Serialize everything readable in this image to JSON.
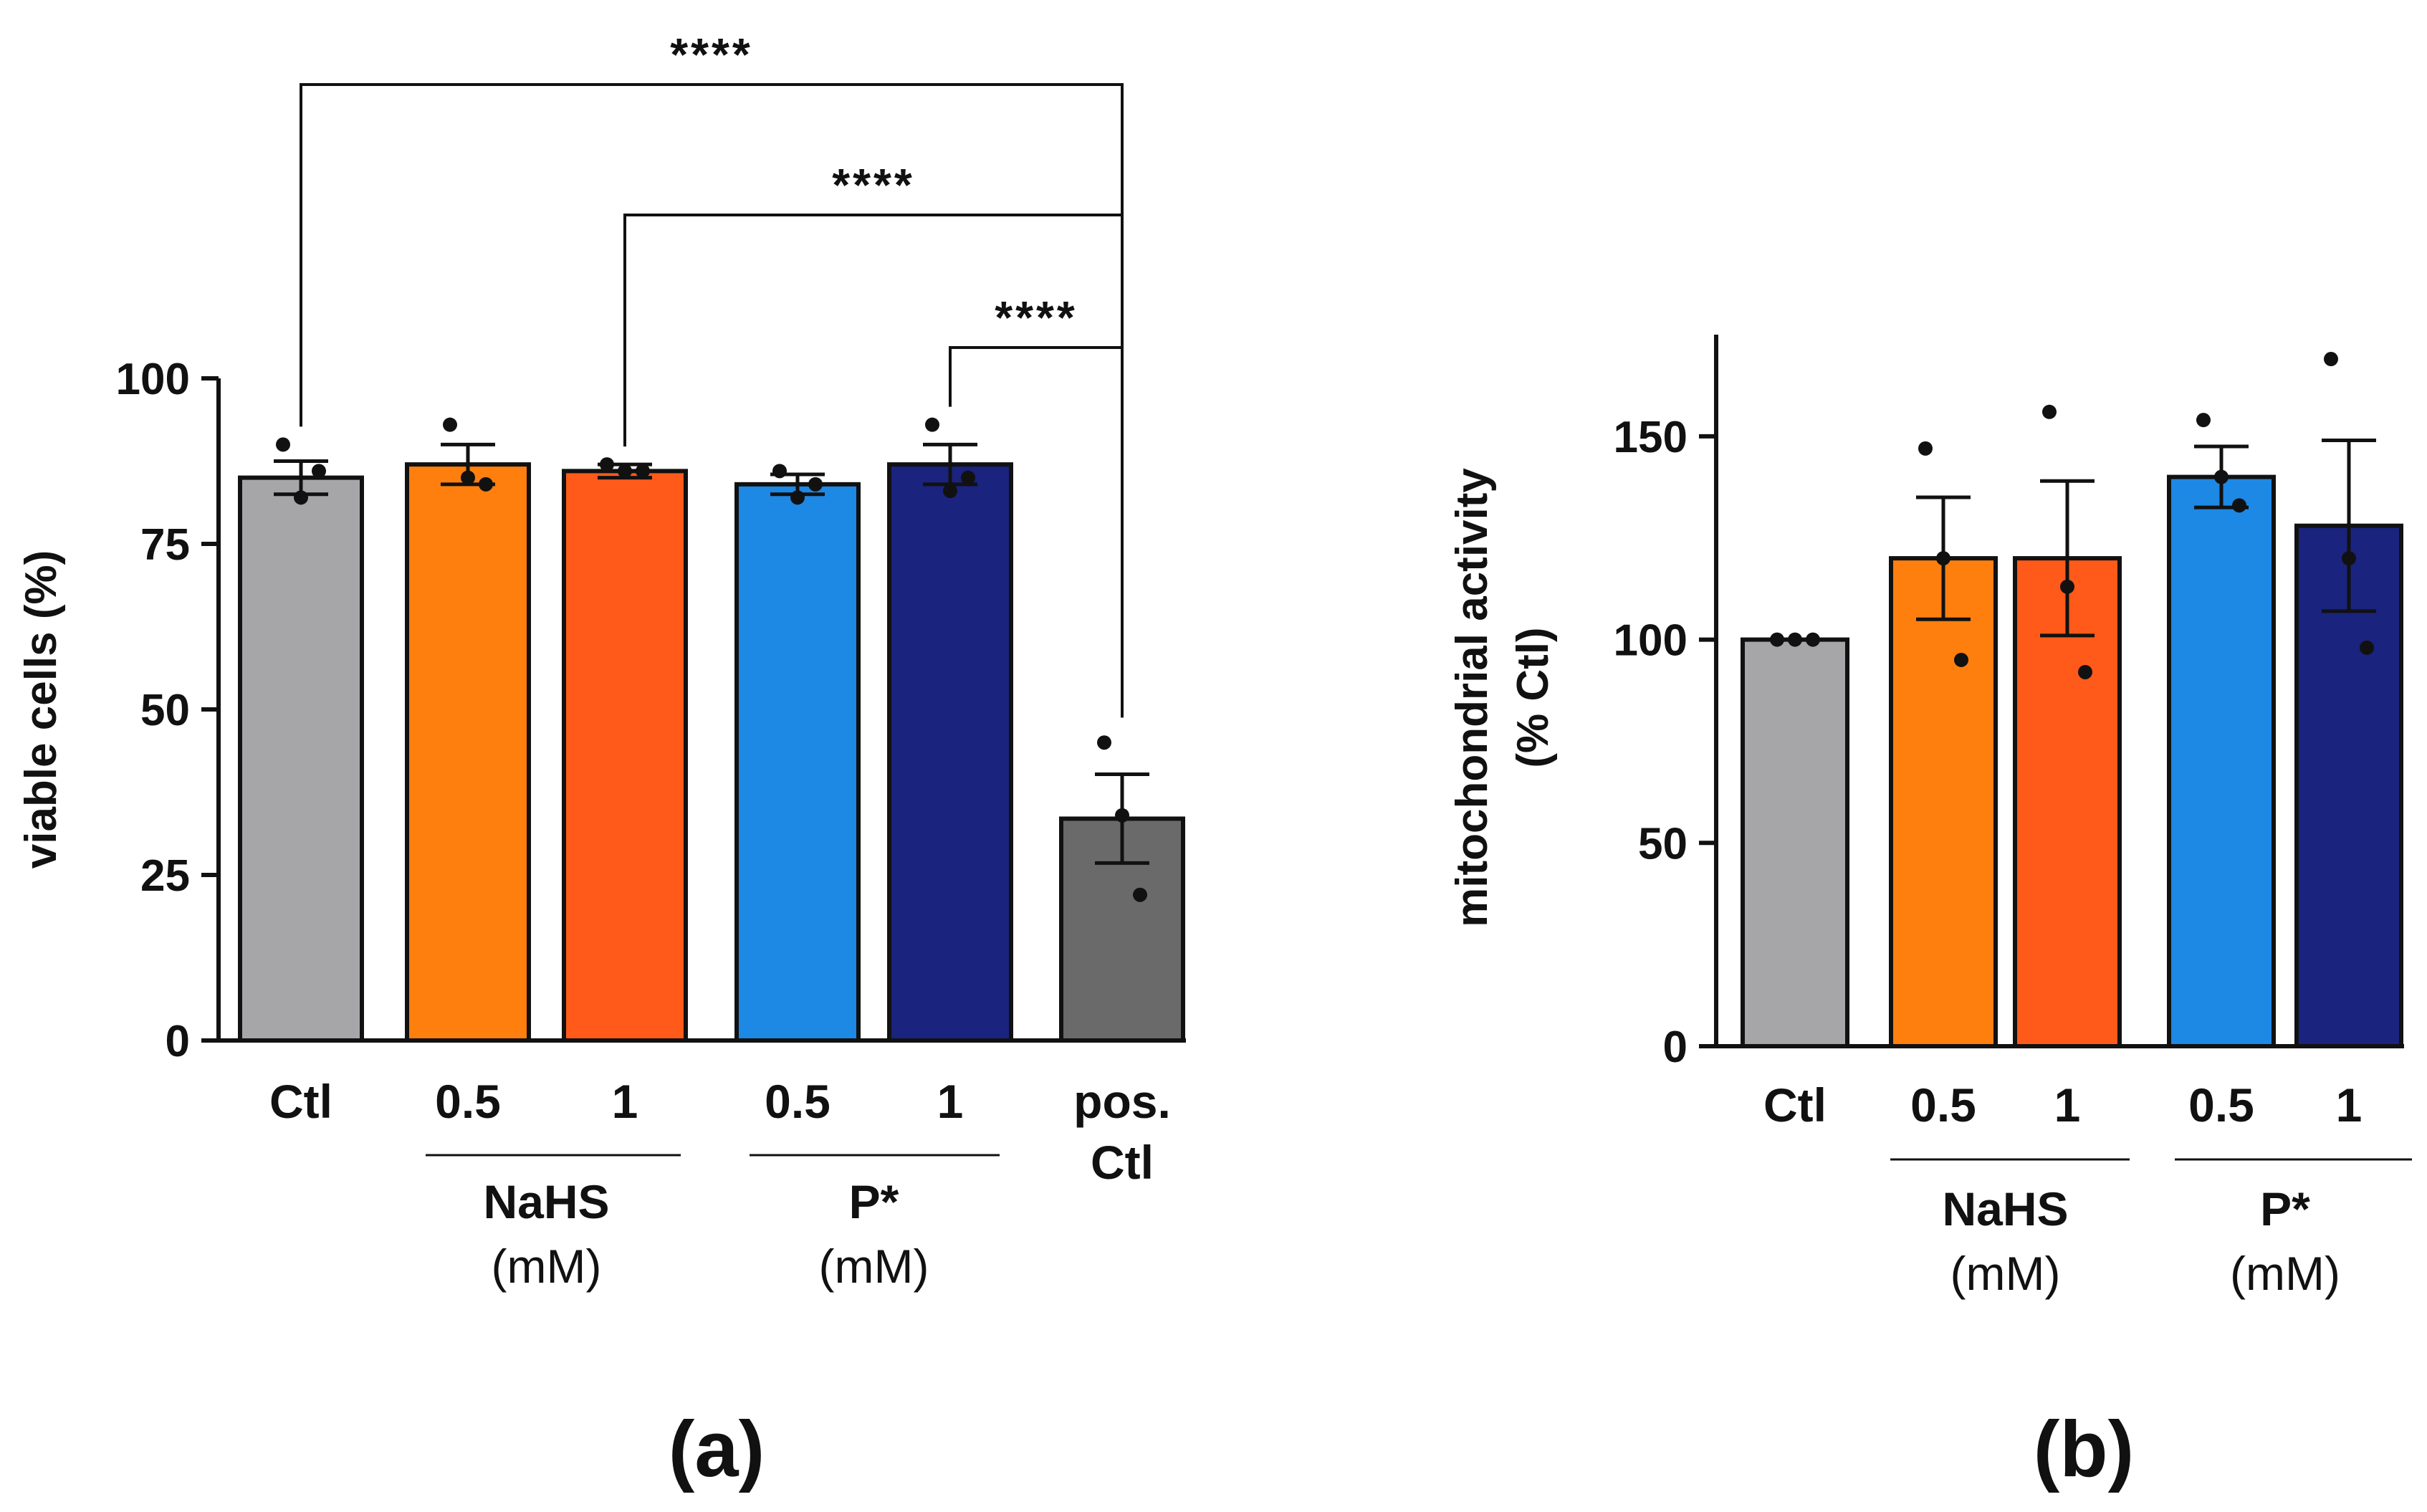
{
  "chart_data": [
    {
      "panel": "(a)",
      "type": "bar",
      "ylabel": "viable cells (%)",
      "ylim": [
        0,
        100
      ],
      "yticks": [
        0,
        25,
        50,
        75,
        100
      ],
      "categories": [
        {
          "label": "Ctl",
          "label2": "",
          "value": 85,
          "sem": 2.5,
          "points": [
            90,
            82,
            86
          ],
          "color": "#a6a6a9"
        },
        {
          "label": "0.5",
          "label2": "",
          "value": 87,
          "sem": 3.0,
          "points": [
            93,
            85,
            84
          ],
          "color": "#ff7f0e"
        },
        {
          "label": "1",
          "label2": "",
          "value": 86,
          "sem": 1.0,
          "points": [
            87,
            86,
            86
          ],
          "color": "#ff5a1a"
        },
        {
          "label": "0.5",
          "label2": "",
          "value": 84,
          "sem": 1.5,
          "points": [
            86,
            82,
            84
          ],
          "color": "#1e88e5"
        },
        {
          "label": "1",
          "label2": "",
          "value": 87,
          "sem": 3.0,
          "points": [
            93,
            83,
            85
          ],
          "color": "#1a237e"
        },
        {
          "label": "pos.",
          "label2": "Ctl",
          "value": 33.5,
          "sem": 6.7,
          "points": [
            45,
            34,
            22
          ],
          "color": "#6a6a6a"
        }
      ],
      "groups": [
        {
          "name": "NaHS",
          "unit": "(mM)",
          "members": [
            1,
            2
          ]
        },
        {
          "name": "P*",
          "unit": "(mM)",
          "members": [
            3,
            4
          ]
        }
      ],
      "significance": [
        {
          "from": 0,
          "to": 5,
          "label": "****"
        },
        {
          "from": 2,
          "to": 5,
          "label": "****"
        },
        {
          "from": 4,
          "to": 5,
          "label": "****"
        }
      ]
    },
    {
      "panel": "(b)",
      "type": "bar",
      "ylabel": "mitochondrial activity",
      "ylabel2": "(% Ctl)",
      "ylim": [
        0,
        175
      ],
      "yticks": [
        0,
        50,
        100,
        150
      ],
      "categories": [
        {
          "label": "Ctl",
          "label2": "",
          "value": 100,
          "sem": 0,
          "points": [
            100,
            100,
            100
          ],
          "color": "#a6a6a9"
        },
        {
          "label": "0.5",
          "label2": "",
          "value": 120,
          "sem": 15,
          "points": [
            147,
            120,
            95
          ],
          "color": "#ff7f0e"
        },
        {
          "label": "1",
          "label2": "",
          "value": 120,
          "sem": 19,
          "points": [
            156,
            113,
            92
          ],
          "color": "#ff5a1a"
        },
        {
          "label": "0.5",
          "label2": "",
          "value": 140,
          "sem": 7.5,
          "points": [
            154,
            140,
            133
          ],
          "color": "#1e88e5"
        },
        {
          "label": "1",
          "label2": "",
          "value": 128,
          "sem": 21,
          "points": [
            169,
            120,
            98
          ],
          "color": "#1a237e"
        }
      ],
      "groups": [
        {
          "name": "NaHS",
          "unit": "(mM)",
          "members": [
            1,
            2
          ]
        },
        {
          "name": "P*",
          "unit": "(mM)",
          "members": [
            3,
            4
          ]
        }
      ],
      "significance": []
    }
  ]
}
